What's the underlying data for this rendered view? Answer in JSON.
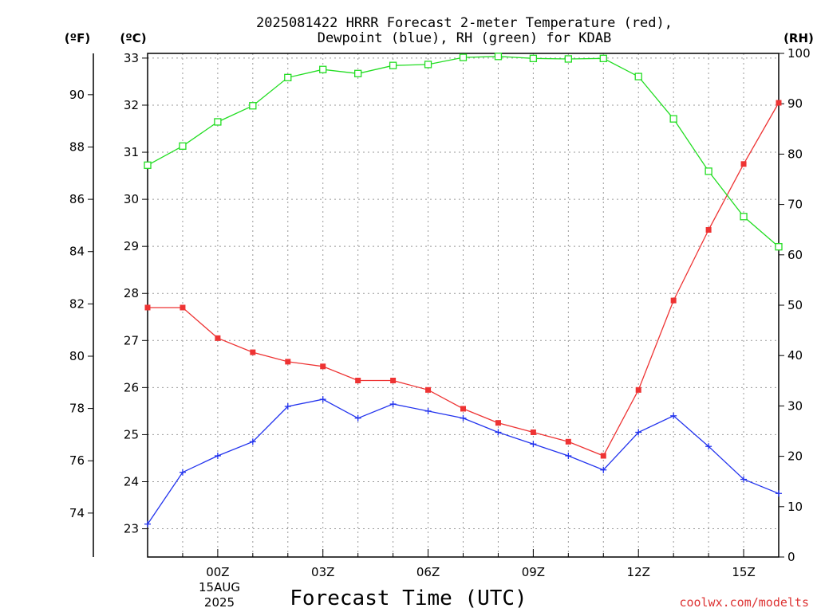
{
  "chart_data": {
    "type": "line",
    "title_line1": "2025081422 HRRR Forecast 2-meter Temperature (red),",
    "title_line2": "Dewpoint (blue), RH (green) for KDAB",
    "xlabel": "Forecast Time (UTC)",
    "left_outer_unit": "(ºF)",
    "left_inner_unit": "(ºC)",
    "right_unit": "(RH)",
    "x_tick_labels": [
      "00Z",
      "03Z",
      "06Z",
      "09Z",
      "12Z",
      "15Z"
    ],
    "date_line1": "15AUG",
    "date_line2": "2025",
    "credit": "coolwx.com/modelts",
    "celsius_ticks": [
      "23",
      "24",
      "25",
      "26",
      "27",
      "28",
      "29",
      "30",
      "31",
      "32",
      "33"
    ],
    "fahrenheit_ticks": [
      "74",
      "76",
      "78",
      "80",
      "82",
      "84",
      "86",
      "88",
      "90"
    ],
    "rh_ticks": [
      "0",
      "10",
      "20",
      "30",
      "40",
      "50",
      "60",
      "70",
      "80",
      "90",
      "100"
    ],
    "celsius_range": [
      22.4,
      33.1
    ],
    "rh_range": [
      0,
      100
    ],
    "x_hours": [
      22,
      23,
      0,
      1,
      2,
      3,
      4,
      5,
      6,
      7,
      8,
      9,
      10,
      11,
      12,
      13,
      14,
      15,
      16
    ],
    "series": [
      {
        "name": "Temperature",
        "axis": "celsius",
        "color": "#ee3333",
        "marker": "filled-square",
        "values": [
          27.7,
          27.7,
          27.05,
          26.75,
          26.55,
          26.45,
          26.15,
          26.15,
          25.95,
          25.55,
          25.25,
          25.05,
          24.85,
          24.55,
          25.95,
          27.85,
          29.35,
          30.75,
          32.05
        ]
      },
      {
        "name": "Dewpoint",
        "axis": "celsius",
        "color": "#2233ee",
        "marker": "plus",
        "values": [
          23.1,
          24.2,
          24.55,
          24.85,
          25.6,
          25.75,
          25.35,
          25.65,
          25.5,
          25.35,
          25.05,
          24.8,
          24.55,
          24.25,
          25.05,
          25.4,
          24.75,
          24.05,
          23.75
        ]
      },
      {
        "name": "RH",
        "axis": "rh",
        "color": "#22dd22",
        "marker": "open-square",
        "values": [
          77.8,
          81.6,
          86.4,
          89.6,
          95.2,
          96.8,
          96.0,
          97.6,
          97.8,
          99.2,
          99.4,
          99.0,
          98.9,
          99.0,
          95.4,
          87.0,
          76.6,
          67.6,
          61.6
        ]
      }
    ],
    "grid": true
  }
}
